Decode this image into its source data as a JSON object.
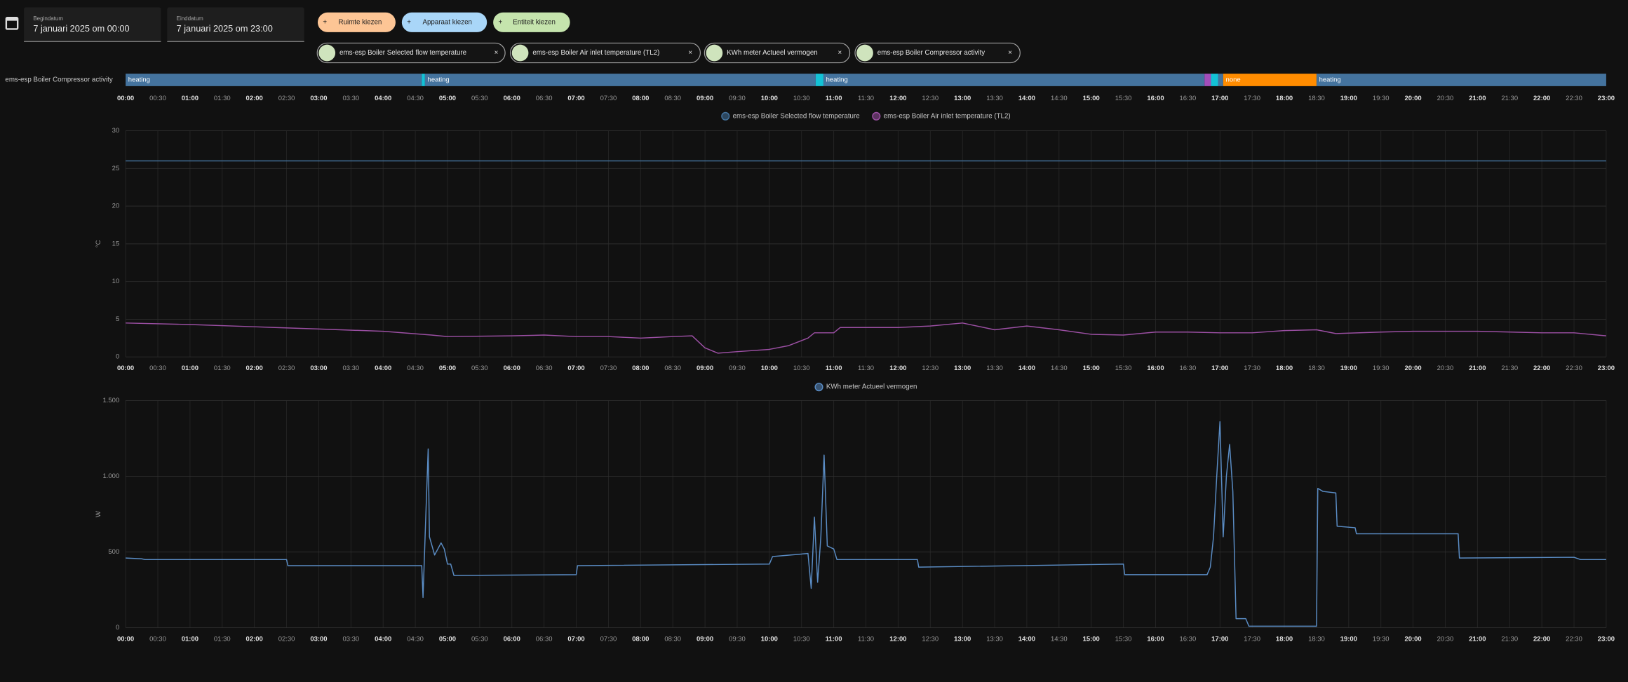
{
  "header": {
    "start_label": "Begindatum",
    "start_value": "7 januari 2025 om 00:00",
    "end_label": "Einddatum",
    "end_value": "7 januari 2025 om 23:00"
  },
  "buttons": [
    "Ruimte kiezen",
    "Apparaat kiezen",
    "Entiteit kiezen"
  ],
  "chips": [
    "ems-esp Boiler Selected flow temperature",
    "ems-esp Boiler Air inlet temperature (TL2)",
    "KWh meter Actueel vermogen",
    "ems-esp Boiler Compressor activity"
  ],
  "chart_data": [
    {
      "type": "timeline",
      "label": "ems-esp Boiler Compressor activity",
      "xlim": [
        0,
        23
      ],
      "segments": [
        {
          "start": 0,
          "end": 4.6,
          "color": "#44739e",
          "label": "heating"
        },
        {
          "start": 4.6,
          "end": 4.65,
          "color": "#13c2d6"
        },
        {
          "start": 4.65,
          "end": 10.72,
          "color": "#44739e",
          "label": "heating"
        },
        {
          "start": 10.72,
          "end": 10.84,
          "color": "#13c2d6"
        },
        {
          "start": 10.84,
          "end": 16.76,
          "color": "#44739e",
          "label": "heating"
        },
        {
          "start": 16.76,
          "end": 16.86,
          "color": "#a24dba"
        },
        {
          "start": 16.86,
          "end": 16.97,
          "color": "#13c2d6"
        },
        {
          "start": 16.97,
          "end": 17.05,
          "color": "#44739e"
        },
        {
          "start": 17.05,
          "end": 18.5,
          "color": "#ff8c00",
          "label": "none"
        },
        {
          "start": 18.5,
          "end": 23,
          "color": "#44739e",
          "label": "heating"
        }
      ],
      "xticks": [
        {
          "value": 0,
          "label": "00:00"
        },
        {
          "value": 0.5,
          "label": "00:30"
        },
        {
          "value": 1,
          "label": "01:00"
        },
        {
          "value": 1.5,
          "label": "01:30"
        },
        {
          "value": 2,
          "label": "02:00"
        },
        {
          "value": 2.5,
          "label": "02:30"
        },
        {
          "value": 3,
          "label": "03:00"
        },
        {
          "value": 3.5,
          "label": "03:30"
        },
        {
          "value": 4,
          "label": "04:00"
        },
        {
          "value": 4.5,
          "label": "04:30"
        },
        {
          "value": 5,
          "label": "05:00"
        },
        {
          "value": 5.5,
          "label": "05:30"
        },
        {
          "value": 6,
          "label": "06:00"
        },
        {
          "value": 6.5,
          "label": "06:30"
        },
        {
          "value": 7,
          "label": "07:00"
        },
        {
          "value": 7.5,
          "label": "07:30"
        },
        {
          "value": 8,
          "label": "08:00"
        },
        {
          "value": 8.5,
          "label": "08:30"
        },
        {
          "value": 9,
          "label": "09:00"
        },
        {
          "value": 9.5,
          "label": "09:30"
        },
        {
          "value": 10,
          "label": "10:00"
        },
        {
          "value": 10.5,
          "label": "10:30"
        },
        {
          "value": 11,
          "label": "11:00"
        },
        {
          "value": 11.5,
          "label": "11:30"
        },
        {
          "value": 12,
          "label": "12:00"
        },
        {
          "value": 12.5,
          "label": "12:30"
        },
        {
          "value": 13,
          "label": "13:00"
        },
        {
          "value": 13.5,
          "label": "13:30"
        },
        {
          "value": 14,
          "label": "14:00"
        },
        {
          "value": 14.5,
          "label": "14:30"
        },
        {
          "value": 15,
          "label": "15:00"
        },
        {
          "value": 15.5,
          "label": "15:30"
        },
        {
          "value": 16,
          "label": "16:00"
        },
        {
          "value": 16.5,
          "label": "16:30"
        },
        {
          "value": 17,
          "label": "17:00"
        },
        {
          "value": 17.5,
          "label": "17:30"
        },
        {
          "value": 18,
          "label": "18:00"
        },
        {
          "value": 18.5,
          "label": "18:30"
        },
        {
          "value": 19,
          "label": "19:00"
        },
        {
          "value": 19.5,
          "label": "19:30"
        },
        {
          "value": 20,
          "label": "20:00"
        },
        {
          "value": 20.5,
          "label": "20:30"
        },
        {
          "value": 21,
          "label": "21:00"
        },
        {
          "value": 21.5,
          "label": "21:30"
        },
        {
          "value": 22,
          "label": "22:00"
        },
        {
          "value": 22.5,
          "label": "22:30"
        },
        {
          "value": 23,
          "label": "23:00"
        }
      ]
    },
    {
      "type": "line",
      "ylabel": "°C",
      "xlim": [
        0,
        23
      ],
      "ylim": [
        0,
        30
      ],
      "yticks": [
        0,
        5,
        10,
        15,
        20,
        25,
        30
      ],
      "grid": true,
      "series": [
        {
          "name": "ems-esp Boiler Selected flow temperature",
          "color": "#44739e",
          "x": [
            0,
            23
          ],
          "values": [
            26,
            26
          ]
        },
        {
          "name": "ems-esp Boiler Air inlet temperature (TL2)",
          "color": "#9b4fa3",
          "x": [
            0,
            1,
            2,
            3,
            4,
            4.75,
            5,
            6,
            6.5,
            7,
            7.5,
            8,
            8.5,
            8.8,
            9,
            9.2,
            9.5,
            10,
            10.3,
            10.6,
            10.7,
            11,
            11.1,
            12,
            12.5,
            13,
            13.5,
            14,
            14.5,
            15,
            15.5,
            16,
            16.5,
            17,
            17.5,
            18,
            18.5,
            18.8,
            19.5,
            20,
            21,
            22,
            22.5,
            23
          ],
          "values": [
            4.5,
            4.3,
            4,
            3.7,
            3.4,
            2.9,
            2.7,
            2.8,
            2.9,
            2.7,
            2.7,
            2.5,
            2.7,
            2.8,
            1.2,
            0.5,
            0.7,
            1,
            1.5,
            2.5,
            3.2,
            3.2,
            3.9,
            3.9,
            4.1,
            4.5,
            3.6,
            4.1,
            3.6,
            3,
            2.9,
            3.3,
            3.3,
            3.2,
            3.2,
            3.5,
            3.6,
            3.1,
            3.3,
            3.4,
            3.4,
            3.2,
            3.2,
            2.8
          ]
        }
      ],
      "xticks": [
        {
          "value": 0,
          "label": "00:00"
        },
        {
          "value": 0.5,
          "label": "00:30"
        },
        {
          "value": 1,
          "label": "01:00"
        },
        {
          "value": 1.5,
          "label": "01:30"
        },
        {
          "value": 2,
          "label": "02:00"
        },
        {
          "value": 2.5,
          "label": "02:30"
        },
        {
          "value": 3,
          "label": "03:00"
        },
        {
          "value": 3.5,
          "label": "03:30"
        },
        {
          "value": 4,
          "label": "04:00"
        },
        {
          "value": 4.5,
          "label": "04:30"
        },
        {
          "value": 5,
          "label": "05:00"
        },
        {
          "value": 5.5,
          "label": "05:30"
        },
        {
          "value": 6,
          "label": "06:00"
        },
        {
          "value": 6.5,
          "label": "06:30"
        },
        {
          "value": 7,
          "label": "07:00"
        },
        {
          "value": 7.5,
          "label": "07:30"
        },
        {
          "value": 8,
          "label": "08:00"
        },
        {
          "value": 8.5,
          "label": "08:30"
        },
        {
          "value": 9,
          "label": "09:00"
        },
        {
          "value": 9.5,
          "label": "09:30"
        },
        {
          "value": 10,
          "label": "10:00"
        },
        {
          "value": 10.5,
          "label": "10:30"
        },
        {
          "value": 11,
          "label": "11:00"
        },
        {
          "value": 11.5,
          "label": "11:30"
        },
        {
          "value": 12,
          "label": "12:00"
        },
        {
          "value": 12.5,
          "label": "12:30"
        },
        {
          "value": 13,
          "label": "13:00"
        },
        {
          "value": 13.5,
          "label": "13:30"
        },
        {
          "value": 14,
          "label": "14:00"
        },
        {
          "value": 14.5,
          "label": "14:30"
        },
        {
          "value": 15,
          "label": "15:00"
        },
        {
          "value": 15.5,
          "label": "15:30"
        },
        {
          "value": 16,
          "label": "16:00"
        },
        {
          "value": 16.5,
          "label": "16:30"
        },
        {
          "value": 17,
          "label": "17:00"
        },
        {
          "value": 17.5,
          "label": "17:30"
        },
        {
          "value": 18,
          "label": "18:00"
        },
        {
          "value": 18.5,
          "label": "18:30"
        },
        {
          "value": 19,
          "label": "19:00"
        },
        {
          "value": 19.5,
          "label": "19:30"
        },
        {
          "value": 20,
          "label": "20:00"
        },
        {
          "value": 20.5,
          "label": "20:30"
        },
        {
          "value": 21,
          "label": "21:00"
        },
        {
          "value": 21.5,
          "label": "21:30"
        },
        {
          "value": 22,
          "label": "22:00"
        },
        {
          "value": 22.5,
          "label": "22:30"
        },
        {
          "value": 23,
          "label": "23:00"
        }
      ]
    },
    {
      "type": "line",
      "ylabel": "W",
      "xlim": [
        0,
        23
      ],
      "ylim": [
        0,
        1500
      ],
      "yticks": [
        0,
        500,
        {
          "value": 1000,
          "label": "1.000"
        },
        {
          "value": 1500,
          "label": "1.500"
        }
      ],
      "grid": true,
      "series": [
        {
          "name": "KWh meter Actueel vermogen",
          "color": "#5a8cc4",
          "x": [
            0,
            0.25,
            0.3,
            2.5,
            2.52,
            4.6,
            4.62,
            4.66,
            4.7,
            4.72,
            4.8,
            4.9,
            4.95,
            5,
            5.05,
            5.1,
            7,
            7.02,
            10,
            10.05,
            10.6,
            10.65,
            10.7,
            10.75,
            10.8,
            10.85,
            10.9,
            11,
            11.05,
            12.3,
            12.32,
            15.5,
            15.52,
            16.8,
            16.85,
            16.9,
            16.95,
            17,
            17.05,
            17.1,
            17.15,
            17.2,
            17.25,
            17.4,
            17.45,
            18.5,
            18.52,
            18.6,
            18.8,
            18.82,
            19.1,
            19.12,
            20.7,
            20.72,
            22.5,
            22.6,
            23
          ],
          "values": [
            460,
            455,
            450,
            450,
            410,
            410,
            200,
            700,
            1180,
            600,
            480,
            560,
            520,
            420,
            420,
            345,
            350,
            410,
            420,
            470,
            490,
            260,
            730,
            300,
            600,
            1140,
            540,
            520,
            450,
            450,
            400,
            420,
            350,
            350,
            400,
            600,
            1000,
            1360,
            600,
            1000,
            1210,
            900,
            60,
            60,
            10,
            10,
            920,
            900,
            890,
            670,
            660,
            620,
            620,
            460,
            465,
            450,
            450
          ]
        }
      ],
      "xticks": [
        {
          "value": 0,
          "label": "00:00"
        },
        {
          "value": 0.5,
          "label": "00:30"
        },
        {
          "value": 1,
          "label": "01:00"
        },
        {
          "value": 1.5,
          "label": "01:30"
        },
        {
          "value": 2,
          "label": "02:00"
        },
        {
          "value": 2.5,
          "label": "02:30"
        },
        {
          "value": 3,
          "label": "03:00"
        },
        {
          "value": 3.5,
          "label": "03:30"
        },
        {
          "value": 4,
          "label": "04:00"
        },
        {
          "value": 4.5,
          "label": "04:30"
        },
        {
          "value": 5,
          "label": "05:00"
        },
        {
          "value": 5.5,
          "label": "05:30"
        },
        {
          "value": 6,
          "label": "06:00"
        },
        {
          "value": 6.5,
          "label": "06:30"
        },
        {
          "value": 7,
          "label": "07:00"
        },
        {
          "value": 7.5,
          "label": "07:30"
        },
        {
          "value": 8,
          "label": "08:00"
        },
        {
          "value": 8.5,
          "label": "08:30"
        },
        {
          "value": 9,
          "label": "09:00"
        },
        {
          "value": 9.5,
          "label": "09:30"
        },
        {
          "value": 10,
          "label": "10:00"
        },
        {
          "value": 10.5,
          "label": "10:30"
        },
        {
          "value": 11,
          "label": "11:00"
        },
        {
          "value": 11.5,
          "label": "11:30"
        },
        {
          "value": 12,
          "label": "12:00"
        },
        {
          "value": 12.5,
          "label": "12:30"
        },
        {
          "value": 13,
          "label": "13:00"
        },
        {
          "value": 13.5,
          "label": "13:30"
        },
        {
          "value": 14,
          "label": "14:00"
        },
        {
          "value": 14.5,
          "label": "14:30"
        },
        {
          "value": 15,
          "label": "15:00"
        },
        {
          "value": 15.5,
          "label": "15:30"
        },
        {
          "value": 16,
          "label": "16:00"
        },
        {
          "value": 16.5,
          "label": "16:30"
        },
        {
          "value": 17,
          "label": "17:00"
        },
        {
          "value": 17.5,
          "label": "17:30"
        },
        {
          "value": 18,
          "label": "18:00"
        },
        {
          "value": 18.5,
          "label": "18:30"
        },
        {
          "value": 19,
          "label": "19:00"
        },
        {
          "value": 19.5,
          "label": "19:30"
        },
        {
          "value": 20,
          "label": "20:00"
        },
        {
          "value": 20.5,
          "label": "20:30"
        },
        {
          "value": 21,
          "label": "21:00"
        },
        {
          "value": 21.5,
          "label": "21:30"
        },
        {
          "value": 22,
          "label": "22:00"
        },
        {
          "value": 22.5,
          "label": "22:30"
        },
        {
          "value": 23,
          "label": "23:00"
        }
      ]
    }
  ]
}
